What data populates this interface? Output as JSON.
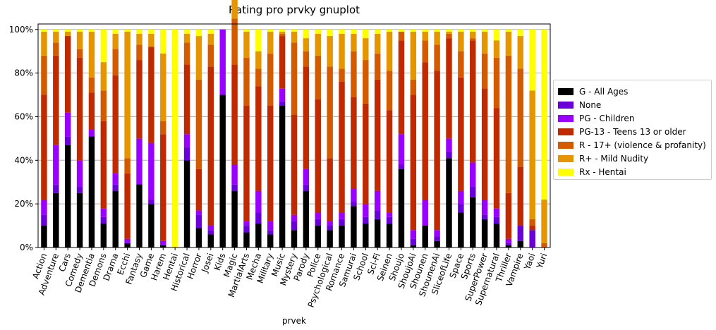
{
  "chart_data": {
    "type": "bar",
    "stacked": true,
    "normalized": true,
    "title": "Rating pro prvky gnuplot",
    "xlabel": "prvek",
    "ylabel": "",
    "ylim": [
      0,
      1
    ],
    "yticks": [
      "0%",
      "20%",
      "40%",
      "60%",
      "80%",
      "100%"
    ],
    "grid": true,
    "legend_position": "center-right",
    "categories": [
      "Action",
      "Adventure",
      "Cars",
      "Comedy",
      "Dementia",
      "Demons",
      "Drama",
      "Ecchi",
      "Fantasy",
      "Game",
      "Harem",
      "Hentai",
      "Historical",
      "Horror",
      "Josei",
      "Kids",
      "Magic",
      "MartialArts",
      "Mecha",
      "Military",
      "Music",
      "Mystery",
      "Parody",
      "Police",
      "Psychological",
      "Romance",
      "Samurai",
      "School",
      "Sci-Fi",
      "Seinen",
      "Shoujo",
      "ShoujoAi",
      "Shounen",
      "ShounenAi",
      "SliceofLife",
      "Space",
      "Sports",
      "SuperPower",
      "Supernatural",
      "Thriller",
      "Vampire",
      "Yaoi",
      "Yuri"
    ],
    "series": [
      {
        "name": "G - All Ages",
        "color": "#000000",
        "values": [
          0.1,
          0.25,
          0.47,
          0.25,
          0.51,
          0.11,
          0.26,
          0.02,
          0.29,
          0.2,
          0.01,
          0.0,
          0.4,
          0.09,
          0.06,
          0.7,
          0.26,
          0.07,
          0.11,
          0.06,
          0.65,
          0.08,
          0.26,
          0.1,
          0.08,
          0.1,
          0.19,
          0.11,
          0.13,
          0.11,
          0.36,
          0.01,
          0.1,
          0.03,
          0.41,
          0.16,
          0.23,
          0.13,
          0.11,
          0.01,
          0.03,
          0.0,
          0.0
        ]
      },
      {
        "name": "None",
        "color": "#6a00d8",
        "values": [
          0.05,
          0.04,
          0.04,
          0.03,
          0.0,
          0.03,
          0.03,
          0.0,
          0.0,
          0.02,
          0.0,
          0.0,
          0.06,
          0.06,
          0.02,
          0.0,
          0.03,
          0.03,
          0.05,
          0.02,
          0.02,
          0.04,
          0.03,
          0.03,
          0.02,
          0.03,
          0.02,
          0.03,
          0.04,
          0.03,
          0.02,
          0.03,
          0.0,
          0.02,
          0.03,
          0.04,
          0.05,
          0.02,
          0.03,
          0.01,
          0.07,
          0.08,
          0.0
        ]
      },
      {
        "name": "PG - Children",
        "color": "#9900ff",
        "values": [
          0.07,
          0.18,
          0.11,
          0.12,
          0.03,
          0.04,
          0.05,
          0.02,
          0.21,
          0.26,
          0.02,
          0.0,
          0.06,
          0.02,
          0.02,
          0.3,
          0.09,
          0.02,
          0.1,
          0.04,
          0.06,
          0.03,
          0.07,
          0.03,
          0.02,
          0.03,
          0.06,
          0.06,
          0.09,
          0.02,
          0.14,
          0.04,
          0.12,
          0.03,
          0.06,
          0.06,
          0.11,
          0.07,
          0.04,
          0.02,
          0.0,
          0.0,
          0.0
        ]
      },
      {
        "name": "PG-13 - Teens 13 or older",
        "color": "#c02a00",
        "values": [
          0.48,
          0.41,
          0.35,
          0.47,
          0.17,
          0.4,
          0.45,
          0.3,
          0.36,
          0.44,
          0.49,
          0.0,
          0.32,
          0.19,
          0.73,
          0.0,
          0.46,
          0.53,
          0.48,
          0.53,
          0.24,
          0.46,
          0.47,
          0.52,
          0.29,
          0.6,
          0.42,
          0.46,
          0.51,
          0.47,
          0.43,
          0.62,
          0.63,
          0.73,
          0.46,
          0.52,
          0.56,
          0.51,
          0.46,
          0.21,
          0.27,
          0.02,
          0.0
        ]
      },
      {
        "name": "R - 17+ (violence & profanity)",
        "color": "#d45a00",
        "values": [
          0.18,
          0.06,
          0.0,
          0.04,
          0.07,
          0.14,
          0.12,
          0.07,
          0.07,
          0.0,
          0.06,
          0.0,
          0.1,
          0.41,
          0.1,
          0.0,
          0.21,
          0.22,
          0.08,
          0.24,
          0.01,
          0.33,
          0.07,
          0.2,
          0.42,
          0.06,
          0.21,
          0.2,
          0.12,
          0.18,
          0.04,
          0.07,
          0.1,
          0.12,
          0.02,
          0.12,
          0.01,
          0.16,
          0.23,
          0.63,
          0.45,
          0.03,
          0.02
        ]
      },
      {
        "name": "R+ - Mild Nudity",
        "color": "#e59500",
        "values": [
          0.11,
          0.05,
          0.02,
          0.08,
          0.21,
          0.13,
          0.07,
          0.58,
          0.05,
          0.06,
          0.31,
          0.0,
          0.04,
          0.2,
          0.05,
          0.0,
          0.11,
          0.12,
          0.08,
          0.1,
          0.01,
          0.05,
          0.06,
          0.1,
          0.14,
          0.16,
          0.08,
          0.1,
          0.09,
          0.18,
          0.0,
          0.22,
          0.04,
          0.06,
          0.01,
          0.09,
          0.03,
          0.1,
          0.08,
          0.11,
          0.15,
          0.59,
          0.2
        ]
      },
      {
        "name": "Rx - Hentai",
        "color": "#ffff00",
        "values": [
          0.01,
          0.01,
          0.01,
          0.01,
          0.01,
          0.15,
          0.02,
          0.01,
          0.02,
          0.02,
          0.11,
          1.0,
          0.02,
          0.03,
          0.02,
          0.0,
          0.04,
          0.01,
          0.1,
          0.01,
          0.01,
          0.01,
          0.04,
          0.02,
          0.03,
          0.02,
          0.02,
          0.04,
          0.02,
          0.01,
          0.01,
          0.01,
          0.01,
          0.01,
          0.01,
          0.01,
          0.01,
          0.01,
          0.05,
          0.01,
          0.03,
          0.28,
          0.78
        ]
      }
    ]
  }
}
